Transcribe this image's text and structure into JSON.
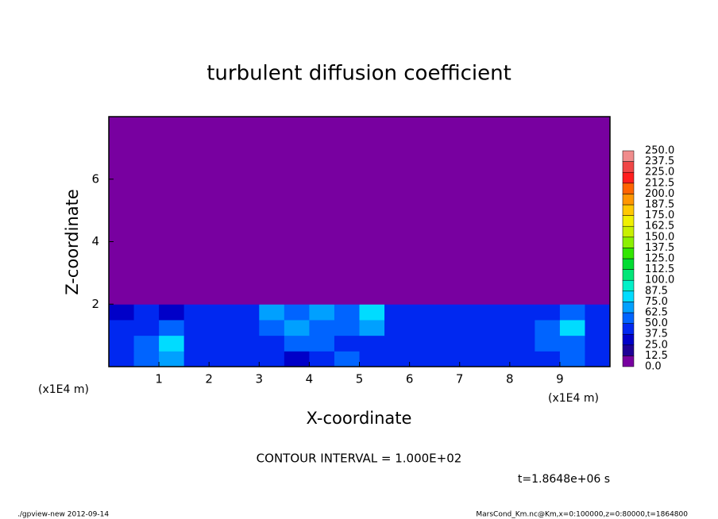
{
  "chart_data": {
    "type": "heatmap",
    "title": "turbulent diffusion coefficient",
    "x_label": "X-coordinate",
    "y_label": "Z-coordinate",
    "x_units": "(x1E4 m)",
    "contour_note": "CONTOUR INTERVAL = 1.000E+02",
    "time_note": "t=1.8648e+06 s",
    "footer_left": "./gpview-new  2012-09-14",
    "footer_right": "MarsCond_Km.nc@Km,x=0:100000,z=0:80000,t=1864800",
    "xlim": [
      0,
      10
    ],
    "ylim": [
      0,
      8
    ],
    "xticks": [
      1,
      2,
      3,
      4,
      5,
      6,
      7,
      8,
      9
    ],
    "yticks": [
      2,
      4,
      6
    ],
    "x_bins": [
      0,
      0.5,
      1,
      1.5,
      2,
      2.5,
      3,
      3.5,
      4,
      4.5,
      5,
      5.5,
      6,
      6.5,
      7,
      7.5,
      8,
      8.5,
      9,
      9.5,
      10
    ],
    "y_bins": [
      0,
      0.5,
      1,
      1.5,
      2,
      8
    ],
    "values": [
      [
        45,
        50,
        70,
        45,
        40,
        45,
        40,
        35,
        45,
        50,
        45,
        40,
        40,
        45,
        40,
        45,
        40,
        45,
        50,
        45
      ],
      [
        40,
        50,
        75,
        45,
        40,
        40,
        40,
        50,
        55,
        40,
        45,
        40,
        45,
        45,
        45,
        45,
        40,
        55,
        60,
        40
      ],
      [
        40,
        45,
        50,
        45,
        45,
        45,
        55,
        70,
        60,
        55,
        65,
        40,
        40,
        45,
        45,
        45,
        45,
        50,
        75,
        45
      ],
      [
        35,
        40,
        35,
        40,
        40,
        45,
        65,
        60,
        65,
        60,
        75,
        45,
        40,
        40,
        40,
        40,
        40,
        45,
        60,
        40
      ],
      [
        0,
        0,
        0,
        0,
        0,
        0,
        0,
        0,
        0,
        0,
        0,
        0,
        0,
        0,
        0,
        0,
        0,
        0,
        0,
        0
      ]
    ],
    "levels": [
      {
        "value": 0,
        "label": "0.0"
      },
      12.5,
      {
        "value": 25,
        "label": "25.0"
      },
      37.5,
      {
        "value": 50,
        "label": "50.0"
      },
      62.5,
      {
        "value": 75,
        "label": "75.0"
      },
      87.5,
      {
        "value": 100,
        "label": "100.0"
      },
      112.5,
      {
        "value": 125,
        "label": "125.0"
      },
      137.5,
      {
        "value": 150,
        "label": "150.0"
      },
      162.5,
      {
        "value": 175,
        "label": "175.0"
      },
      187.5,
      {
        "value": 200,
        "label": "200.0"
      },
      212.5,
      {
        "value": 225,
        "label": "225.0"
      },
      237.5,
      {
        "value": 250,
        "label": "250.0"
      }
    ],
    "colors": [
      "#7800a0",
      "#1e0096",
      "#0000c8",
      "#0028f0",
      "#0064ff",
      "#00a0ff",
      "#00dcff",
      "#00f0c8",
      "#00e678",
      "#00dc32",
      "#32e600",
      "#8cf000",
      "#c8f000",
      "#f0f000",
      "#ffc800",
      "#ff9600",
      "#ff6400",
      "#ff1e1e",
      "#f04646",
      "#f08c8c"
    ]
  }
}
